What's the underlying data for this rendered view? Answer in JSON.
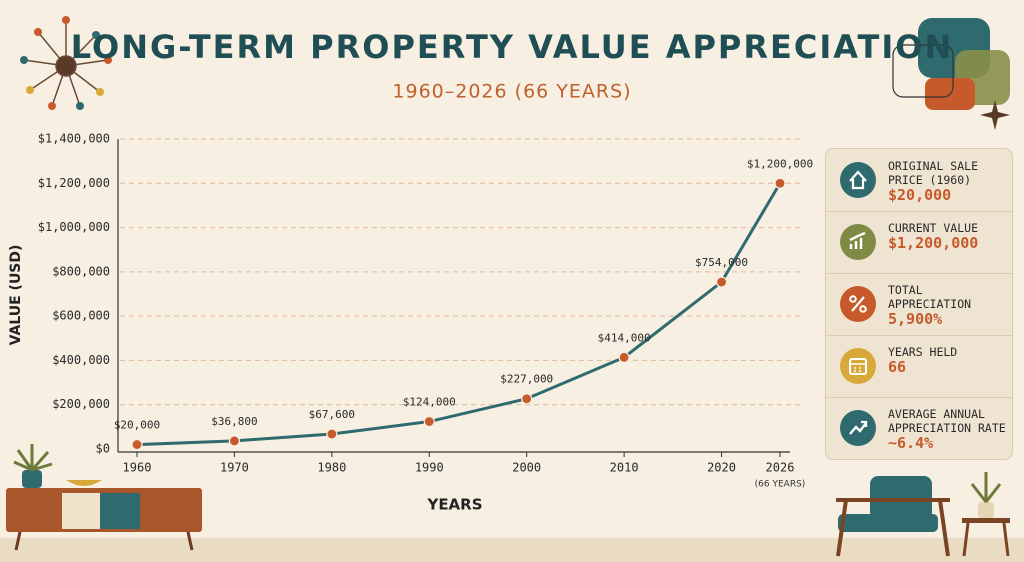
{
  "chart_data": {
    "type": "line",
    "title": "LONG-TERM PROPERTY VALUE APPRECIATION",
    "subtitle": "1960–2026 (66 YEARS)",
    "x_label": "YEARS",
    "y_label": "VALUE (USD)",
    "x": [
      1960,
      1970,
      1980,
      1990,
      2000,
      2010,
      2020,
      2026
    ],
    "series": [
      {
        "name": "Property value",
        "color": "#2f6b6e",
        "marker_color": "#c65a2b",
        "values": [
          20000,
          36800,
          67600,
          124000,
          227000,
          414000,
          754000,
          1200000
        ],
        "value_labels": [
          "$20,000",
          "$36,800",
          "$67,600",
          "$124,000",
          "$227,000",
          "$414,000",
          "$754,000",
          "$1,200,000"
        ]
      }
    ],
    "xlim": [
      1960,
      2026
    ],
    "xticks": [
      1960,
      1970,
      1980,
      1990,
      2000,
      2010,
      2020,
      2026
    ],
    "ylim": [
      0,
      1400000
    ],
    "yticks": [
      {
        "value": 0,
        "label": "$0"
      },
      {
        "value": 200000,
        "label": "$200,000"
      },
      {
        "value": 400000,
        "label": "$400,000"
      },
      {
        "value": 600000,
        "label": "$600,000"
      },
      {
        "value": 800000,
        "label": "$800,000"
      },
      {
        "value": 1000000,
        "label": "$1,000,000"
      },
      {
        "value": 1200000,
        "label": "$1,200,000"
      },
      {
        "value": 1400000,
        "label": "$1,400,000"
      }
    ],
    "annotations": [
      "(66 YEARS)"
    ],
    "grid": true
  },
  "stats": [
    {
      "label": "ORIGINAL SALE PRICE (1960)",
      "value": "$20,000"
    },
    {
      "label": "CURRENT VALUE",
      "value": "$1,200,000"
    },
    {
      "label": "TOTAL APPRECIATION",
      "value": "5,900%"
    },
    {
      "label": "YEARS HELD",
      "value": "66"
    },
    {
      "label": "AVERAGE ANNUAL APPRECIATION RATE",
      "value": "~6.4%"
    }
  ]
}
